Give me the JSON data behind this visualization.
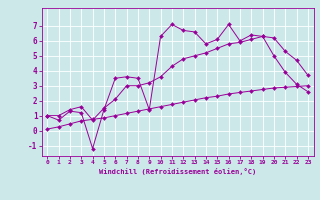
{
  "xlabel": "Windchill (Refroidissement éolien,°C)",
  "background_color": "#cce8e8",
  "line_color": "#990099",
  "grid_color": "#ffffff",
  "xlim": [
    -0.5,
    23.5
  ],
  "ylim": [
    -1.7,
    8.2
  ],
  "xticks": [
    0,
    1,
    2,
    3,
    4,
    5,
    6,
    7,
    8,
    9,
    10,
    11,
    12,
    13,
    14,
    15,
    16,
    17,
    18,
    19,
    20,
    21,
    22,
    23
  ],
  "yticks": [
    -1,
    0,
    1,
    2,
    3,
    4,
    5,
    6,
    7
  ],
  "series": [
    [
      1.0,
      0.7,
      1.3,
      1.2,
      -1.2,
      1.4,
      3.5,
      3.6,
      3.5,
      1.4,
      6.3,
      7.1,
      6.7,
      6.6,
      5.8,
      6.1,
      7.1,
      6.0,
      6.4,
      6.3,
      5.0,
      3.9,
      3.1,
      2.6
    ],
    [
      1.0,
      1.0,
      1.4,
      1.6,
      0.7,
      1.5,
      2.1,
      3.0,
      3.0,
      3.2,
      3.6,
      4.3,
      4.8,
      5.0,
      5.2,
      5.5,
      5.8,
      5.9,
      6.1,
      6.3,
      6.2,
      5.3,
      4.7,
      3.7
    ],
    [
      0.1,
      0.25,
      0.45,
      0.65,
      0.75,
      0.85,
      1.0,
      1.15,
      1.3,
      1.45,
      1.6,
      1.75,
      1.9,
      2.05,
      2.2,
      2.3,
      2.45,
      2.55,
      2.65,
      2.75,
      2.85,
      2.9,
      2.95,
      3.0
    ]
  ]
}
